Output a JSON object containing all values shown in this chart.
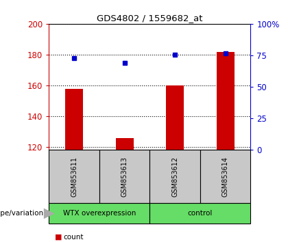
{
  "title": "GDS4802 / 1559682_at",
  "samples": [
    "GSM853611",
    "GSM853613",
    "GSM853612",
    "GSM853614"
  ],
  "count_values": [
    158,
    126,
    160,
    182
  ],
  "percentile_values": [
    178,
    175,
    180,
    181
  ],
  "ylim_left": [
    118,
    200
  ],
  "ylim_right": [
    0,
    100
  ],
  "yticks_left": [
    120,
    140,
    160,
    180,
    200
  ],
  "yticks_right": [
    0,
    25,
    50,
    75,
    100
  ],
  "ytick_labels_right": [
    "0",
    "25",
    "50",
    "75",
    "100%"
  ],
  "groups": [
    {
      "label": "WTX overexpression",
      "indices": [
        0,
        1
      ],
      "color": "#66DD66"
    },
    {
      "label": "control",
      "indices": [
        2,
        3
      ],
      "color": "#66DD66"
    }
  ],
  "group_label": "genotype/variation",
  "bar_color": "#CC0000",
  "point_color": "#0000CC",
  "grid_color": "#000000",
  "bg_color": "#FFFFFF",
  "sample_bg_color": "#C8C8C8",
  "left_axis_color": "#CC0000",
  "right_axis_color": "#0000CC",
  "bar_width": 0.35
}
